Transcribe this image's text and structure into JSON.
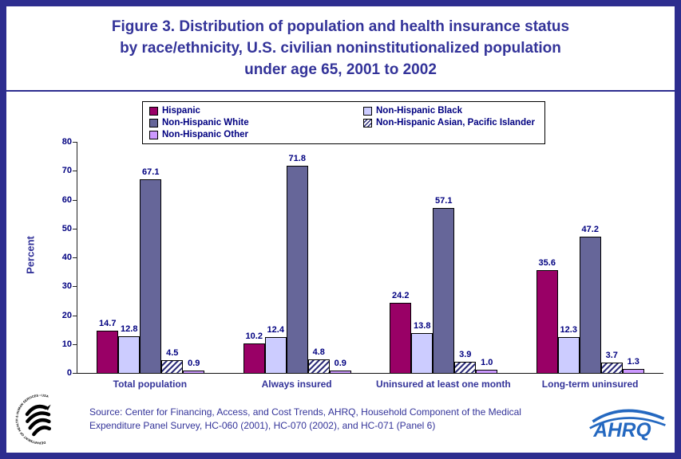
{
  "title": {
    "lines": [
      "Figure 3. Distribution of population and health insurance status",
      "by race/ethnicity, U.S. civilian noninstitutionalized population",
      "under age 65, 2001 to 2002"
    ]
  },
  "chart_data": {
    "type": "bar",
    "title": "Figure 3. Distribution of population and health insurance status by race/ethnicity, U.S. civilian noninstitutionalized population under age 65, 2001 to 2002",
    "xlabel": "",
    "ylabel": "Percent",
    "ylim": [
      0,
      80
    ],
    "ytick_step": 10,
    "grid": false,
    "legend_position": "top",
    "categories": [
      "Total population",
      "Always insured",
      "Uninsured at least one month",
      "Long-term uninsured"
    ],
    "series": [
      {
        "name": "Hispanic",
        "color": "#990066",
        "hatch": false,
        "values": [
          14.7,
          10.2,
          24.2,
          35.6
        ]
      },
      {
        "name": "Non-Hispanic Black",
        "color": "#CCCCFF",
        "hatch": false,
        "values": [
          12.8,
          12.4,
          13.8,
          12.3
        ]
      },
      {
        "name": "Non-Hispanic White",
        "color": "#666699",
        "hatch": false,
        "values": [
          67.1,
          71.8,
          57.1,
          47.2
        ]
      },
      {
        "name": "Non-Hispanic Asian, Pacific Islander",
        "color": "#FFFFFF",
        "hatch": true,
        "hatch_color": "#2E2E7A",
        "values": [
          4.5,
          4.8,
          3.9,
          3.7
        ]
      },
      {
        "name": "Non-Hispanic Other",
        "color": "#CC99FF",
        "hatch": false,
        "values": [
          0.9,
          0.9,
          1.0,
          1.3
        ]
      }
    ],
    "legend_order": [
      "Hispanic",
      "Non-Hispanic Black",
      "Non-Hispanic White",
      "Non-Hispanic Asian, Pacific Islander",
      "Non-Hispanic Other"
    ]
  },
  "footer": {
    "source_lines": [
      "Source: Center for Financing, Access, and Cost Trends, AHRQ, Household Component of the Medical",
      "Expenditure Panel Survey, HC-060 (2001), HC-070 (2002), and HC-071 (Panel 6)"
    ],
    "hhs_seal_text": "DEPARTMENT OF HEALTH & HUMAN SERVICES • USA",
    "ahrq_logo_text": "AHRQ"
  },
  "colors": {
    "border": "#2D2D8F",
    "title_text": "#333399",
    "axis_text": "#000080",
    "category_text": "#333399",
    "value_label_text": "#000080",
    "source_text": "#333399",
    "ahrq_blue": "#2468C0",
    "hatch_line": "#2E2E7A"
  }
}
